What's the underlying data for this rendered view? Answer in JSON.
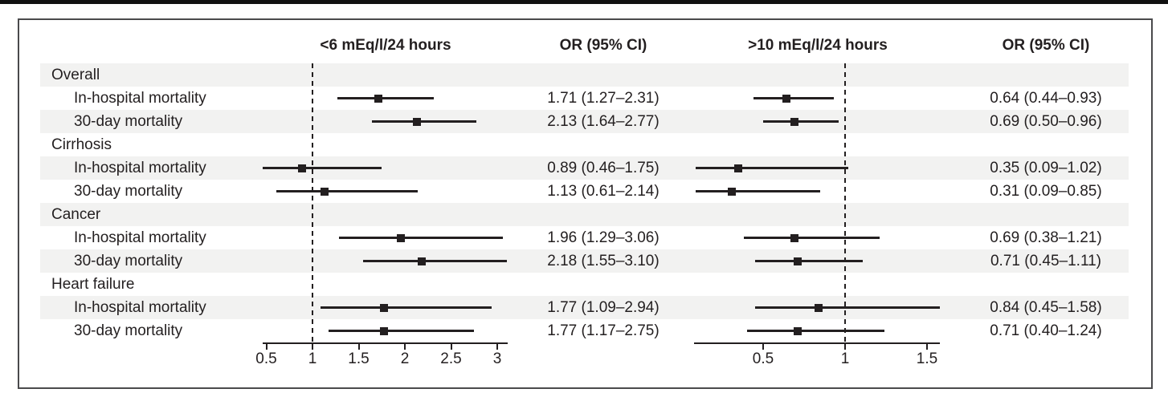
{
  "figure_title": "",
  "colors": {
    "ink": "#231f20",
    "row_stripe": "#f2f2f1",
    "frame_border": "#4a4a4c",
    "top_rule": "#111111",
    "background": "#ffffff"
  },
  "chart_data": {
    "type": "forest",
    "legend_position": "none",
    "grid": false,
    "panels": [
      {
        "title": "<6 mEq/l/24 hours",
        "or_header": "OR (95% CI)",
        "ref_line": 1,
        "axis_ticks": [
          0.5,
          1,
          1.5,
          2,
          2.5,
          3
        ],
        "axis_range": [
          0.46,
          3.11
        ]
      },
      {
        "title": ">10 mEq/l/24 hours",
        "or_header": "OR (95% CI)",
        "ref_line": 1,
        "axis_ticks": [
          0.5,
          1,
          1.5
        ],
        "axis_range": [
          0.08,
          1.58
        ]
      }
    ],
    "rows": [
      {
        "type": "group",
        "label": "Overall"
      },
      {
        "type": "item",
        "label": "In-hospital mortality",
        "estimates": [
          {
            "or": 1.71,
            "ci_low": 1.27,
            "ci_high": 2.31,
            "text": "1.71 (1.27–2.31)"
          },
          {
            "or": 0.64,
            "ci_low": 0.44,
            "ci_high": 0.93,
            "text": "0.64 (0.44–0.93)"
          }
        ]
      },
      {
        "type": "item",
        "label": "30-day mortality",
        "estimates": [
          {
            "or": 2.13,
            "ci_low": 1.64,
            "ci_high": 2.77,
            "text": "2.13 (1.64–2.77)"
          },
          {
            "or": 0.69,
            "ci_low": 0.5,
            "ci_high": 0.96,
            "text": "0.69 (0.50–0.96)"
          }
        ]
      },
      {
        "type": "group",
        "label": "Cirrhosis"
      },
      {
        "type": "item",
        "label": "In-hospital mortality",
        "estimates": [
          {
            "or": 0.89,
            "ci_low": 0.46,
            "ci_high": 1.75,
            "text": "0.89 (0.46–1.75)"
          },
          {
            "or": 0.35,
            "ci_low": 0.09,
            "ci_high": 1.02,
            "text": "0.35 (0.09–1.02)"
          }
        ]
      },
      {
        "type": "item",
        "label": "30-day mortality",
        "estimates": [
          {
            "or": 1.13,
            "ci_low": 0.61,
            "ci_high": 2.14,
            "text": "1.13 (0.61–2.14)"
          },
          {
            "or": 0.31,
            "ci_low": 0.09,
            "ci_high": 0.85,
            "text": "0.31 (0.09–0.85)"
          }
        ]
      },
      {
        "type": "group",
        "label": "Cancer"
      },
      {
        "type": "item",
        "label": "In-hospital mortality",
        "estimates": [
          {
            "or": 1.96,
            "ci_low": 1.29,
            "ci_high": 3.06,
            "text": "1.96 (1.29–3.06)"
          },
          {
            "or": 0.69,
            "ci_low": 0.38,
            "ci_high": 1.21,
            "text": "0.69 (0.38–1.21)"
          }
        ]
      },
      {
        "type": "item",
        "label": "30-day mortality",
        "estimates": [
          {
            "or": 2.18,
            "ci_low": 1.55,
            "ci_high": 3.1,
            "text": "2.18 (1.55–3.10)"
          },
          {
            "or": 0.71,
            "ci_low": 0.45,
            "ci_high": 1.11,
            "text": "0.71 (0.45–1.11)"
          }
        ]
      },
      {
        "type": "group",
        "label": "Heart failure"
      },
      {
        "type": "item",
        "label": "In-hospital mortality",
        "estimates": [
          {
            "or": 1.77,
            "ci_low": 1.09,
            "ci_high": 2.94,
            "text": "1.77 (1.09–2.94)"
          },
          {
            "or": 0.84,
            "ci_low": 0.45,
            "ci_high": 1.58,
            "text": "0.84 (0.45–1.58)"
          }
        ]
      },
      {
        "type": "item",
        "label": "30-day mortality",
        "estimates": [
          {
            "or": 1.77,
            "ci_low": 1.17,
            "ci_high": 2.75,
            "text": "1.77 (1.17–2.75)"
          },
          {
            "or": 0.71,
            "ci_low": 0.4,
            "ci_high": 1.24,
            "text": "0.71 (0.40–1.24)"
          }
        ]
      }
    ]
  }
}
